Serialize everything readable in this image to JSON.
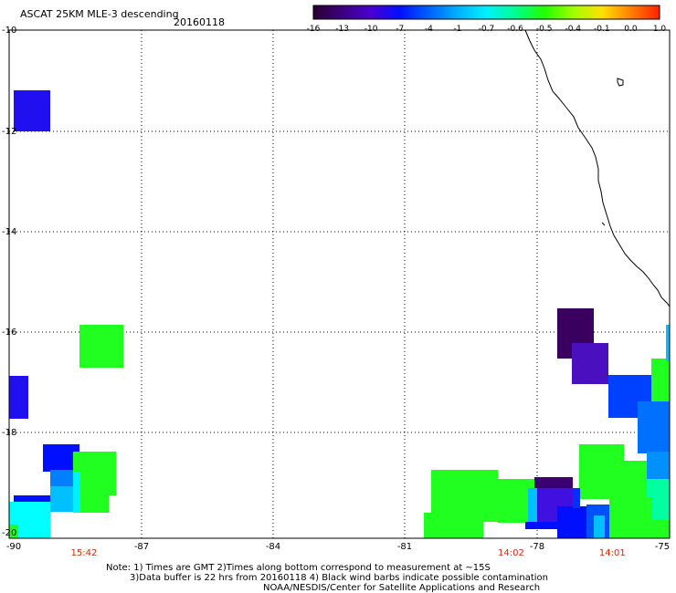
{
  "header": {
    "title": "ASCAT 25KM MLE-3 descending",
    "date": "20160118"
  },
  "colorbar": {
    "labels": [
      "-16",
      "-13",
      "-10",
      "-7",
      "-4",
      "-1",
      "-0.7",
      "-0.6",
      "-0.5",
      "-0.4",
      "-0.1",
      "0.0",
      "1.0"
    ],
    "colors": [
      "#2a0030",
      "#3d0080",
      "#4a00d0",
      "#0010ff",
      "#0060ff",
      "#00b0ff",
      "#00f0ff",
      "#00ff90",
      "#20ff00",
      "#a0ff00",
      "#ffe000",
      "#ff8000",
      "#ff2000"
    ]
  },
  "axes": {
    "y_ticks": [
      "-10",
      "-12",
      "-14",
      "-16",
      "-18",
      "-20"
    ],
    "x_ticks": [
      "-90",
      "-87",
      "-84",
      "-81",
      "-78",
      "-75"
    ],
    "lat_range": [
      -20,
      -10
    ],
    "lon_range": [
      -90,
      -75
    ],
    "grid": true
  },
  "pass_times": [
    {
      "label": "15:42",
      "lon": -88.3
    },
    {
      "label": "14:02",
      "lon": -78.6
    },
    {
      "label": "14:01",
      "lon": -76.3
    }
  ],
  "notes": {
    "line1": "Note: 1) Times are GMT 2)Times along bottom correspond to measurement at ~15S",
    "line2": "3)Data buffer is 22 hrs from 20160118 4) Black wind barbs indicate possible contamination",
    "line3": "NOAA/NESDIS/Center for Satellite Applications and Research"
  }
}
